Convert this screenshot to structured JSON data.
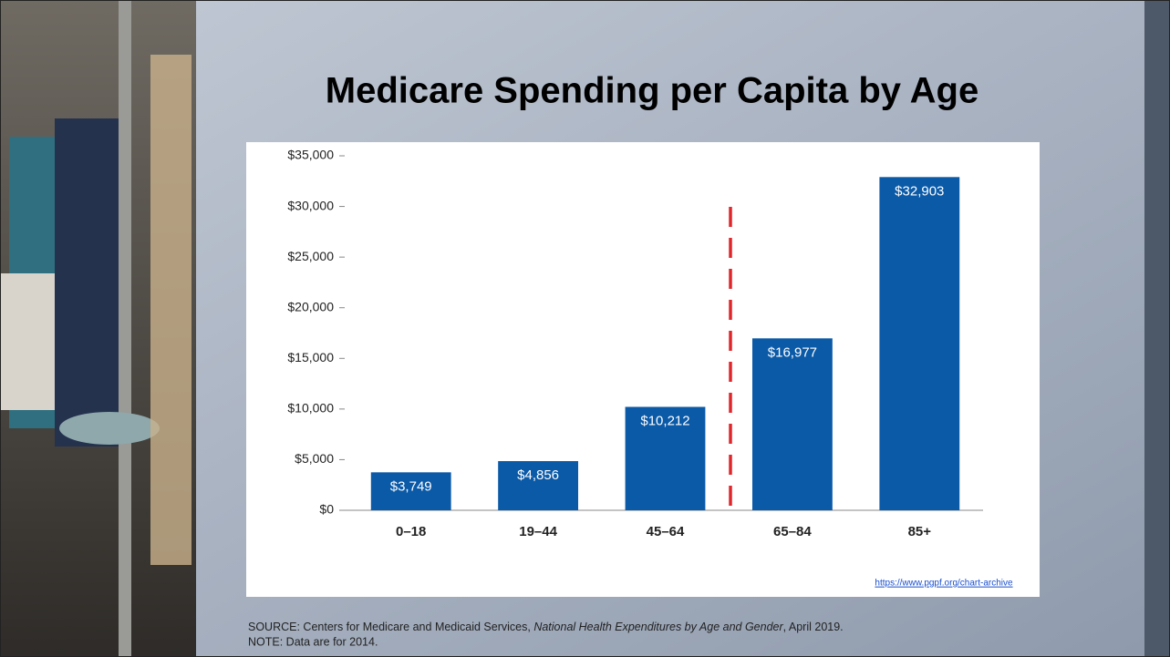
{
  "chart_data": {
    "type": "bar",
    "title": "Medicare Spending per Capita by Age",
    "categories": [
      "0–18",
      "19–44",
      "45–64",
      "65–84",
      "85+"
    ],
    "values": [
      3749,
      4856,
      10212,
      16977,
      32903
    ],
    "value_labels": [
      "$3,749",
      "$4,856",
      "$10,212",
      "$16,977",
      "$32,903"
    ],
    "color": "#0b5aa8",
    "ylim": [
      0,
      35000
    ],
    "yticks": [
      {
        "value": 0,
        "label": "$0"
      },
      {
        "value": 5000,
        "label": "$5,000"
      },
      {
        "value": 10000,
        "label": "$10,000"
      },
      {
        "value": 15000,
        "label": "$15,000"
      },
      {
        "value": 20000,
        "label": "$20,000"
      },
      {
        "value": 25000,
        "label": "$25,000"
      },
      {
        "value": 30000,
        "label": "$30,000"
      },
      {
        "value": 35000,
        "label": "$35,000"
      }
    ],
    "url": "https://www.pgpf.org/chart-archive",
    "source": [
      "SOURCE: Centers for Medicare and Medicaid Services, ",
      "National Health Expenditures by Age and Gender",
      ", April 2019."
    ],
    "note": "NOTE: Data are for 2014."
  }
}
